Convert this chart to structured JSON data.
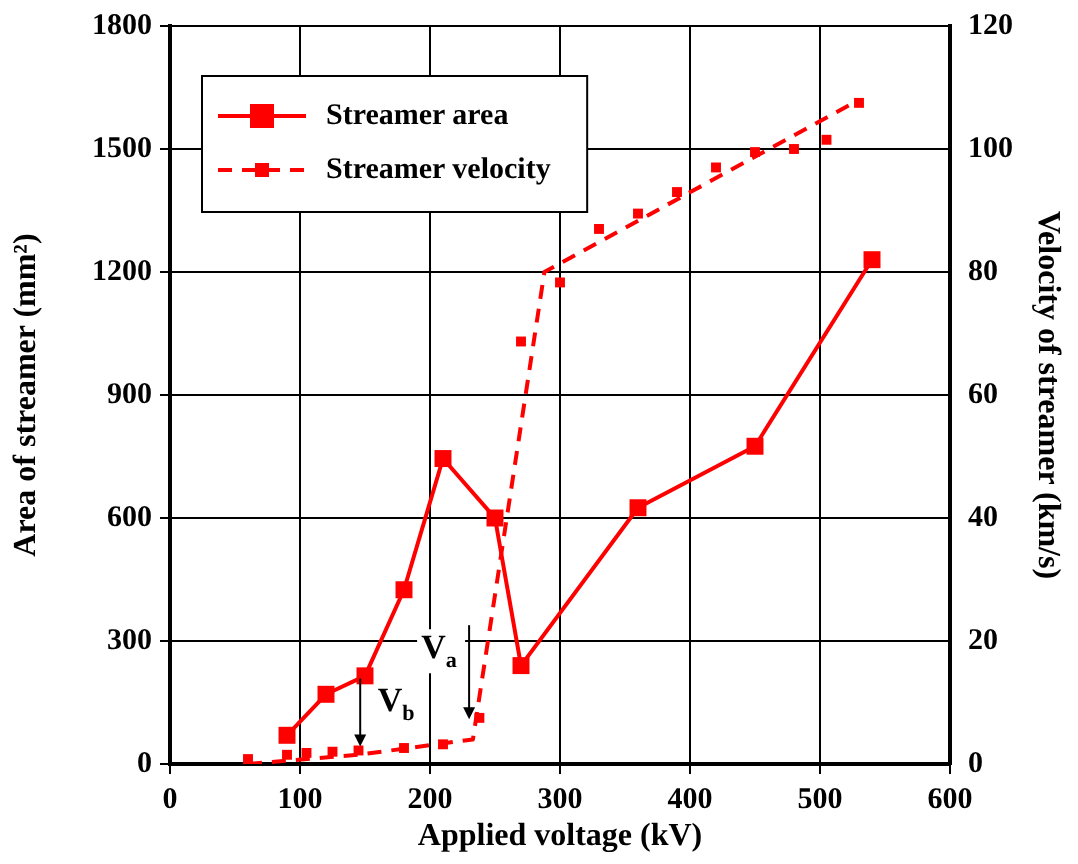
{
  "chart_data": {
    "type": "line",
    "xlabel": "Applied voltage (kV)",
    "ylabel": "Area of streamer (mm²)",
    "y2label": "Velocity of streamer (km/s)",
    "xlim": [
      0,
      600
    ],
    "xticks": [
      0,
      100,
      200,
      300,
      400,
      500,
      600
    ],
    "ylim": [
      0,
      1800
    ],
    "yticks": [
      0,
      300,
      600,
      900,
      1200,
      1500,
      1800
    ],
    "y2lim": [
      0,
      120
    ],
    "y2ticks": [
      0,
      20,
      40,
      60,
      80,
      100,
      120
    ],
    "grid": true,
    "legend": "top left",
    "series": [
      {
        "name": "Streamer area",
        "color": "#ff0000",
        "line_style": "solid",
        "marker": "square",
        "x": [
          90,
          120,
          150,
          180,
          210,
          250,
          270,
          360,
          450,
          540
        ],
        "values": [
          70,
          170,
          215,
          425,
          745,
          600,
          240,
          625,
          775,
          1230
        ]
      },
      {
        "name": "Streamer velocity",
        "type": "scatter",
        "color": "#ff0000",
        "axis": "y2",
        "line_style": "dashed",
        "marker": "square",
        "x": [
          60,
          90,
          105,
          125,
          145,
          180,
          210,
          238,
          270,
          300,
          330,
          360,
          390,
          420,
          450,
          480,
          505,
          530
        ],
        "values": [
          0.8,
          1.5,
          1.8,
          2,
          2.2,
          2.6,
          3.2,
          7.5,
          68.7,
          78.3,
          87,
          89.5,
          93,
          97,
          99.5,
          100,
          101.5,
          107.5
        ]
      },
      {
        "type": "line",
        "color": "#ff0000",
        "axis": "y2",
        "line_style": "dashed",
        "marker": "none",
        "x": [
          60,
          145,
          233,
          288,
          530
        ],
        "values": [
          0,
          1.5,
          4,
          80,
          108
        ]
      }
    ],
    "annotations": [
      {
        "text": "V$_{a}$",
        "x": 207,
        "y": 280
      },
      {
        "text": "V$_{b}$",
        "x": 174,
        "y": 150
      }
    ]
  }
}
